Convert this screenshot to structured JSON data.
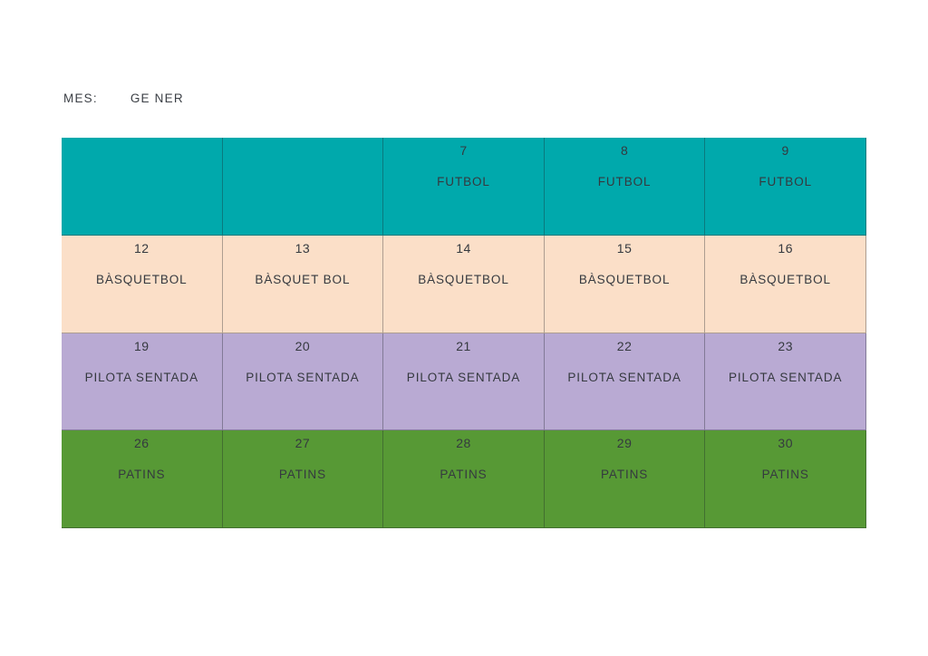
{
  "header": {
    "label": "MES:",
    "month": "GE NER"
  },
  "colors": {
    "futbol_row": "#00A9AC",
    "basquetbol_row": "#FBDFC8",
    "pilota_row": "#B9AAD3",
    "patins_row": "#579935",
    "text": "#35393f"
  },
  "calendar": {
    "rows": [
      {
        "activity": "FUTBOL",
        "color": "#00A9AC",
        "cells": [
          {
            "day": "",
            "label": ""
          },
          {
            "day": "",
            "label": ""
          },
          {
            "day": "7",
            "label": "FUTBOL"
          },
          {
            "day": "8",
            "label": "FUTBOL"
          },
          {
            "day": "9",
            "label": "FUTBOL"
          }
        ]
      },
      {
        "activity": "BÀSQUETBOL",
        "color": "#FBDFC8",
        "cells": [
          {
            "day": "12",
            "label": "BÀSQUETBOL"
          },
          {
            "day": "13",
            "label": "BÀSQUET BOL"
          },
          {
            "day": "14",
            "label": "BÀSQUETBOL"
          },
          {
            "day": "15",
            "label": "BÀSQUETBOL"
          },
          {
            "day": "16",
            "label": "BÀSQUETBOL"
          }
        ]
      },
      {
        "activity": "PILOTA SENTADA",
        "color": "#B9AAD3",
        "cells": [
          {
            "day": "19",
            "label": "PILOTA SENTADA"
          },
          {
            "day": "20",
            "label": "PILOTA SENTADA"
          },
          {
            "day": "21",
            "label": "PILOTA SENTADA"
          },
          {
            "day": "22",
            "label": "PILOTA SENTADA"
          },
          {
            "day": "23",
            "label": "PILOTA SENTADA"
          }
        ]
      },
      {
        "activity": "PATINS",
        "color": "#579935",
        "cells": [
          {
            "day": "26",
            "label": "PATINS"
          },
          {
            "day": "27",
            "label": "PATINS"
          },
          {
            "day": "28",
            "label": "PATINS"
          },
          {
            "day": "29",
            "label": "PATINS"
          },
          {
            "day": "30",
            "label": "PATINS"
          }
        ]
      }
    ]
  }
}
